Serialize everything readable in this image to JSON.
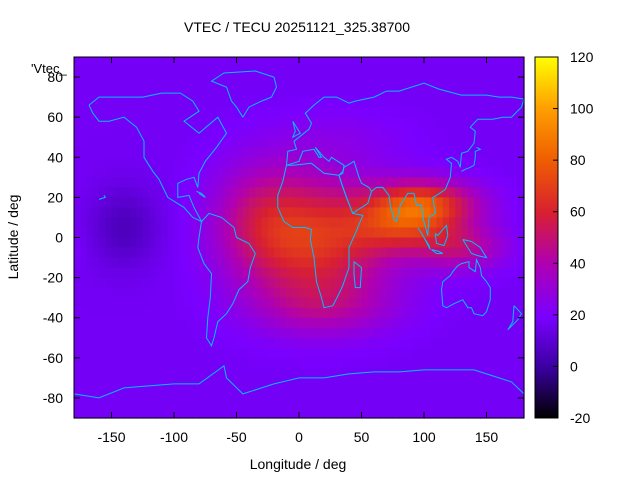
{
  "chart_data": {
    "type": "heatmap",
    "title": "VTEC / TECU 20251121_325.38700",
    "xlabel": "Longitude / deg",
    "ylabel": "Latitude / deg",
    "series_label": "'Vtec_",
    "xlim": [
      -180,
      180
    ],
    "ylim": [
      -90,
      90
    ],
    "x_ticks": [
      -150,
      -100,
      -50,
      0,
      50,
      100,
      150
    ],
    "y_ticks": [
      -80,
      -60,
      -40,
      -20,
      0,
      20,
      40,
      60,
      80
    ],
    "colorbar": {
      "range": [
        -20,
        120
      ],
      "ticks": [
        -20,
        0,
        20,
        40,
        60,
        80,
        100,
        120
      ],
      "colormap": "black-purple-red-orange-yellow"
    },
    "background_tec": 18,
    "tec_features": [
      {
        "lon": 15,
        "lat": -2,
        "peak": 45,
        "sx": 42,
        "sy": 22
      },
      {
        "lon": 100,
        "lat": 17,
        "peak": 48,
        "sx": 30,
        "sy": 8
      },
      {
        "lon": 85,
        "lat": 5,
        "peak": 32,
        "sx": 30,
        "sy": 9
      },
      {
        "lon": 130,
        "lat": -5,
        "peak": 25,
        "sx": 25,
        "sy": 8
      },
      {
        "lon": -30,
        "lat": 10,
        "peak": 20,
        "sx": 28,
        "sy": 20
      },
      {
        "lon": 20,
        "lat": -35,
        "peak": 15,
        "sx": 40,
        "sy": 10
      },
      {
        "lon": -140,
        "lat": 5,
        "peak": -12,
        "sx": 20,
        "sy": 14
      },
      {
        "lon": 30,
        "lat": 50,
        "peak": 5,
        "sx": 40,
        "sy": 10
      }
    ],
    "colors": {
      "coastline": "#00bfff",
      "axis": "#000000"
    }
  }
}
